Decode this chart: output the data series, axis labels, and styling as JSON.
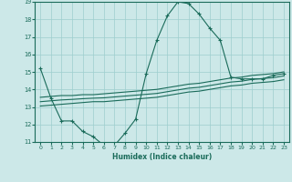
{
  "xlabel": "Humidex (Indice chaleur)",
  "x": [
    0,
    1,
    2,
    3,
    4,
    5,
    6,
    7,
    8,
    9,
    10,
    11,
    12,
    13,
    14,
    15,
    16,
    17,
    18,
    19,
    20,
    21,
    22,
    23
  ],
  "line_main": [
    15.2,
    13.5,
    12.2,
    12.2,
    11.6,
    11.3,
    10.8,
    10.8,
    11.5,
    12.3,
    14.9,
    16.8,
    18.2,
    19.0,
    18.9,
    18.3,
    17.5,
    16.8,
    14.7,
    14.6,
    14.6,
    14.6,
    14.8,
    14.9
  ],
  "line_upper": [
    13.55,
    13.6,
    13.65,
    13.65,
    13.7,
    13.7,
    13.75,
    13.8,
    13.85,
    13.9,
    13.95,
    14.0,
    14.1,
    14.2,
    14.3,
    14.35,
    14.45,
    14.55,
    14.65,
    14.7,
    14.8,
    14.85,
    14.9,
    15.0
  ],
  "line_lower": [
    13.05,
    13.1,
    13.15,
    13.2,
    13.25,
    13.3,
    13.3,
    13.35,
    13.4,
    13.45,
    13.5,
    13.55,
    13.65,
    13.75,
    13.85,
    13.9,
    14.0,
    14.1,
    14.2,
    14.25,
    14.35,
    14.4,
    14.45,
    14.55
  ],
  "line_mid": [
    13.3,
    13.35,
    13.4,
    13.43,
    13.47,
    13.5,
    13.52,
    13.57,
    13.62,
    13.67,
    13.72,
    13.77,
    13.87,
    13.97,
    14.07,
    14.12,
    14.22,
    14.32,
    14.42,
    14.47,
    14.57,
    14.62,
    14.67,
    14.77
  ],
  "ylim": [
    11,
    19
  ],
  "yticks": [
    11,
    12,
    13,
    14,
    15,
    16,
    17,
    18,
    19
  ],
  "xticks": [
    0,
    1,
    2,
    3,
    4,
    5,
    6,
    7,
    8,
    9,
    10,
    11,
    12,
    13,
    14,
    15,
    16,
    17,
    18,
    19,
    20,
    21,
    22,
    23
  ],
  "line_color": "#1a6b5a",
  "bg_color": "#cce8e8",
  "grid_color": "#9ecece",
  "marker": "+"
}
